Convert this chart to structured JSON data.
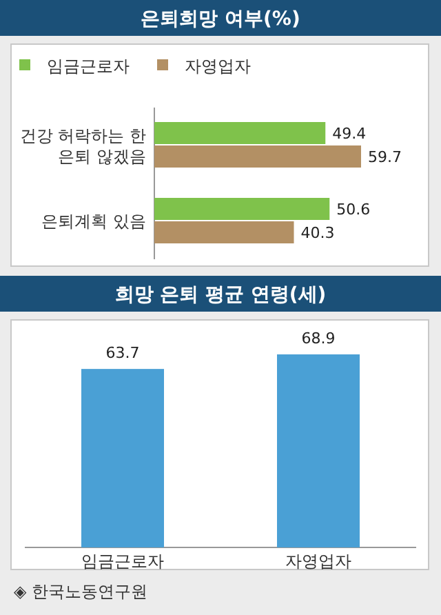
{
  "chart_data": [
    {
      "type": "bar",
      "orientation": "horizontal",
      "title": "은퇴희망 여부(%)",
      "categories": [
        "건강 허락하는 한 은퇴 않겠음",
        "은퇴계획 있음"
      ],
      "series": [
        {
          "name": "임금근로자",
          "color": "#7fc24b",
          "values": [
            49.4,
            50.6
          ]
        },
        {
          "name": "자영업자",
          "color": "#b39064",
          "values": [
            59.7,
            40.3
          ]
        }
      ],
      "data_labels": true,
      "legend": "top left"
    },
    {
      "type": "bar",
      "title": "희망 은퇴 평균 연령(세)",
      "categories": [
        "임금근로자",
        "자영업자"
      ],
      "values": [
        63.7,
        68.9
      ],
      "color": "#4aa0d5",
      "data_labels": true,
      "tick_labels": "x",
      "annotations": [
        "◈ 한국노동연구원"
      ]
    }
  ]
}
